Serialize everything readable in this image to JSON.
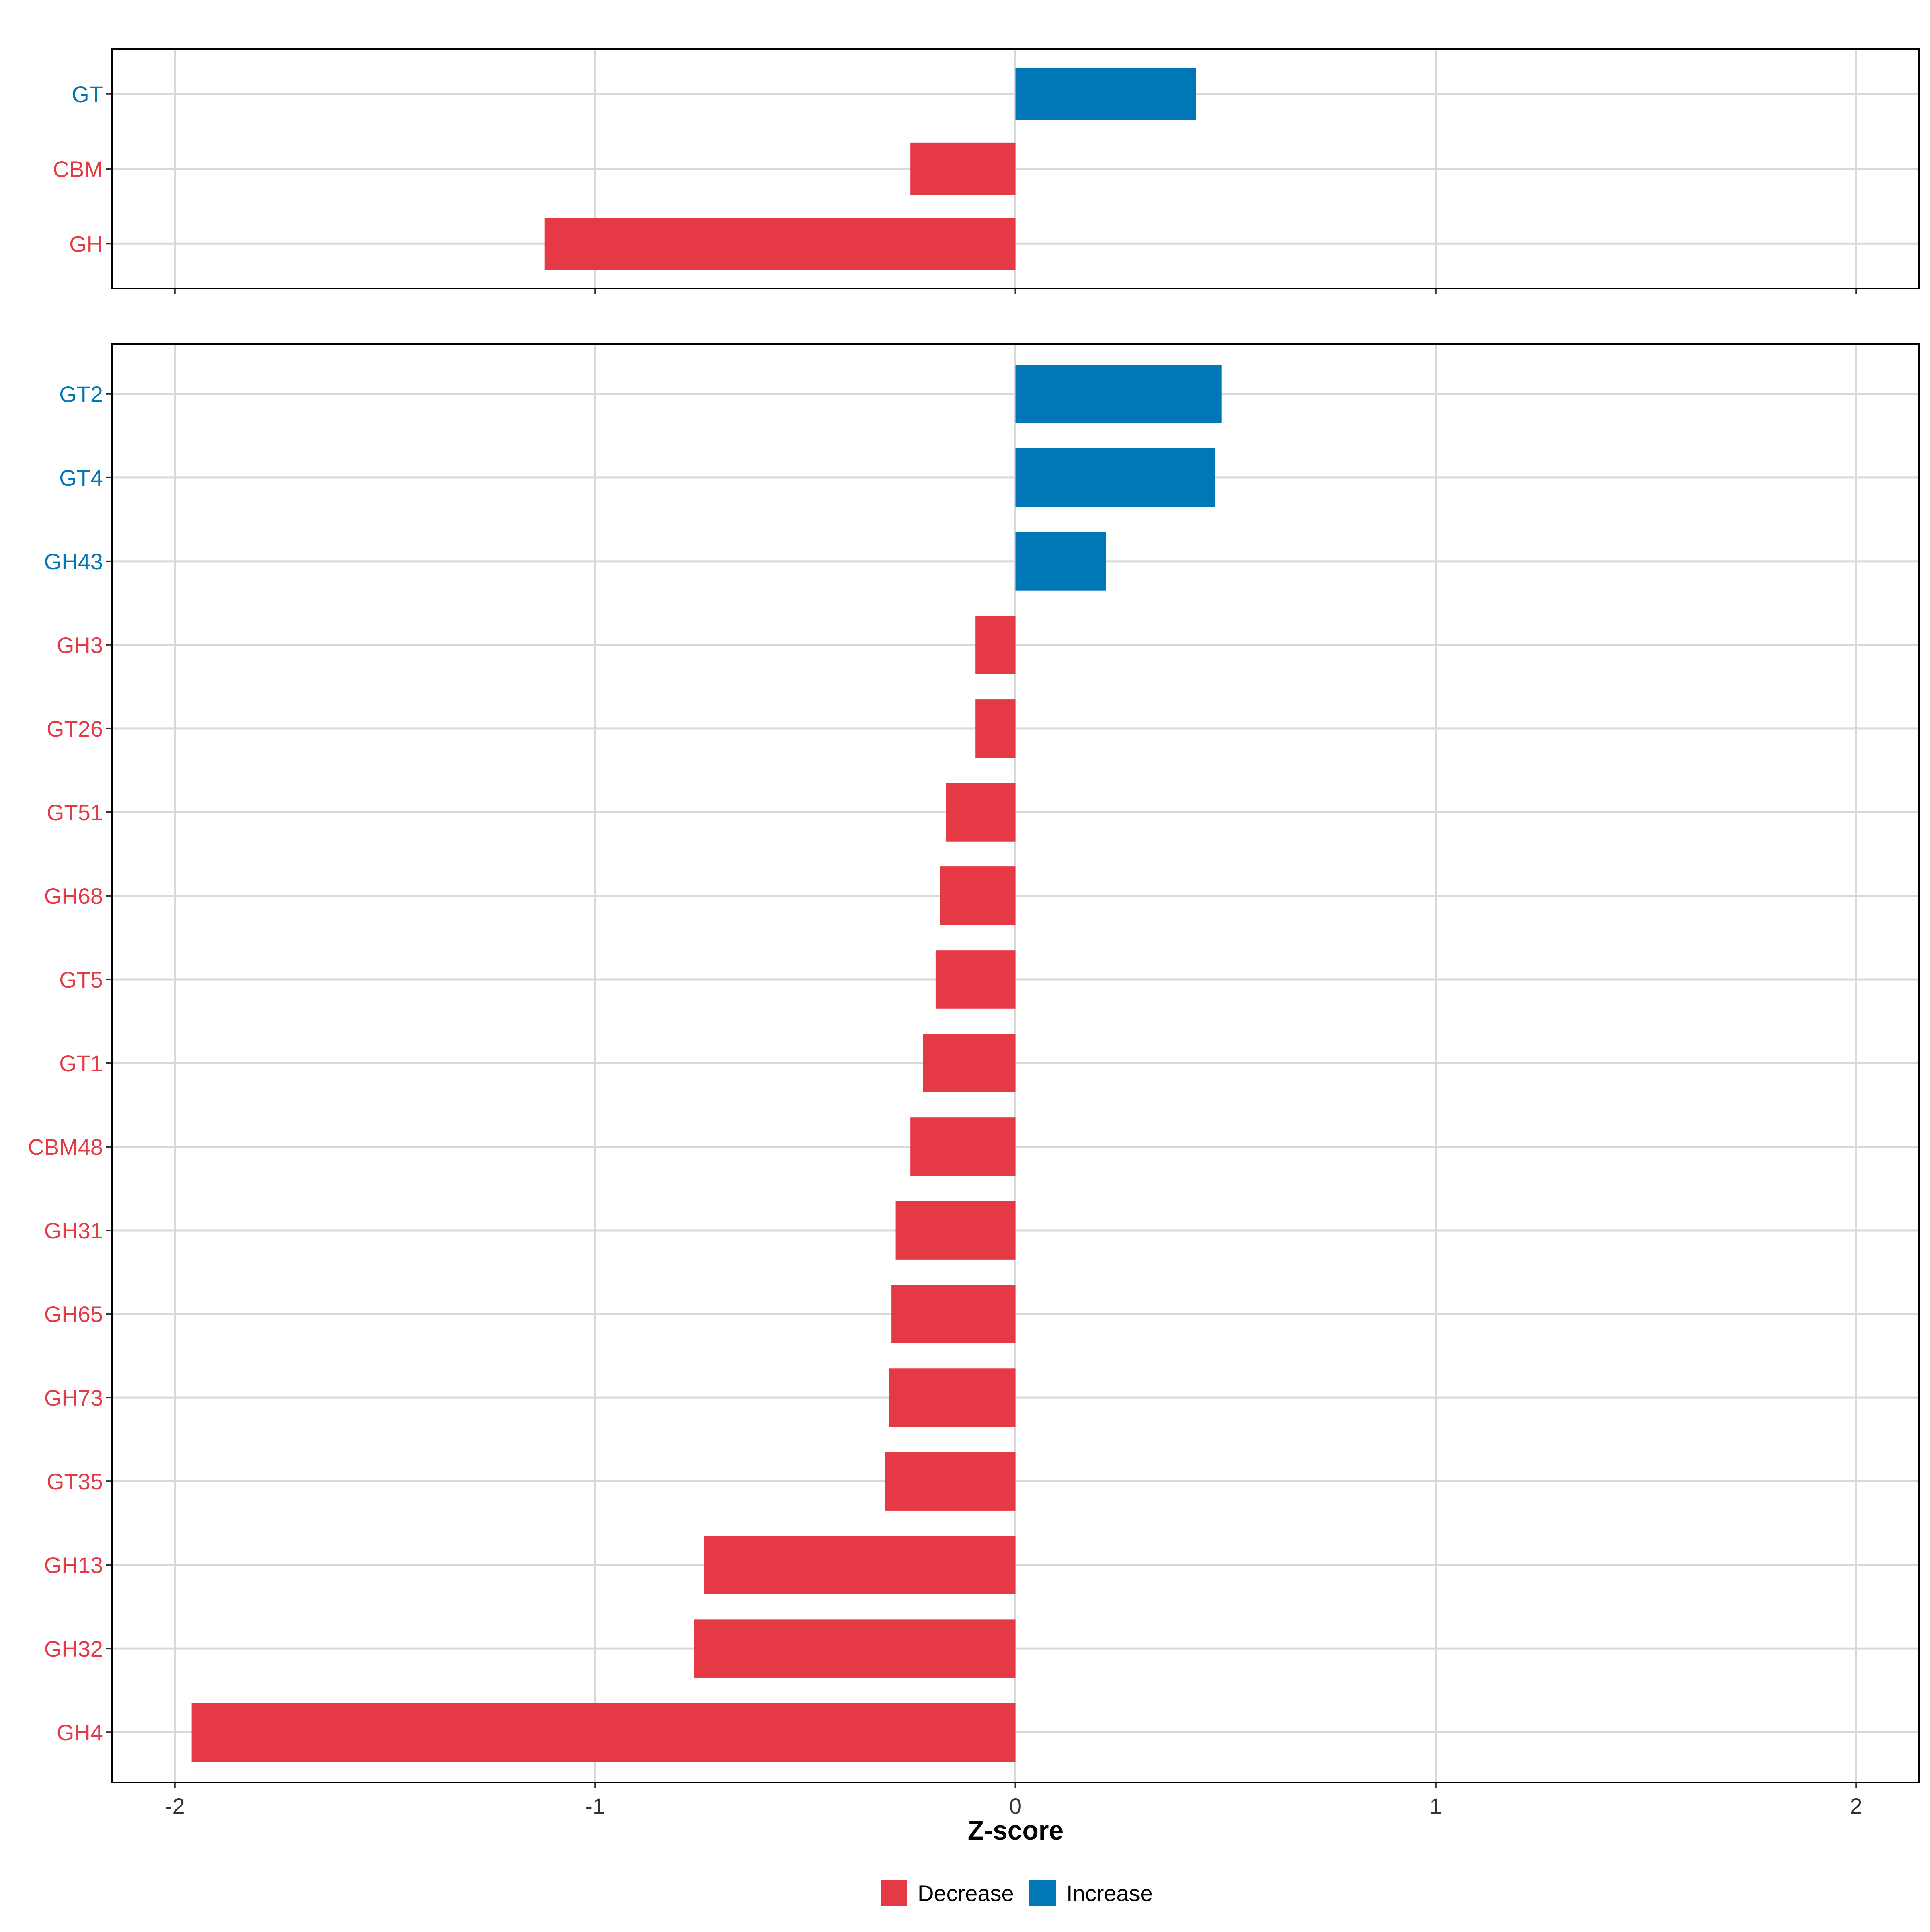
{
  "chart_data": {
    "type": "bar",
    "orientation": "horizontal",
    "xlabel": "Z-score",
    "xlim": [
      -2.15,
      2.15
    ],
    "xticks": [
      -2,
      -1,
      0,
      1,
      2
    ],
    "xtick_labels": [
      "-2",
      "-1",
      "0",
      "1",
      "2"
    ],
    "grid": true,
    "legend_position": "bottom",
    "legend": [
      {
        "label": "Decrease",
        "color": "#E63946"
      },
      {
        "label": "Increase",
        "color": "#0077B6"
      }
    ],
    "panels": [
      {
        "name": "top",
        "categories": [
          "GT",
          "CBM",
          "GH"
        ],
        "values": [
          0.43,
          -0.25,
          -1.12
        ]
      },
      {
        "name": "bottom",
        "categories": [
          "GT2",
          "GT4",
          "GH43",
          "GH3",
          "GT26",
          "GT51",
          "GH68",
          "GT5",
          "GT1",
          "CBM48",
          "GH31",
          "GH65",
          "GH73",
          "GT35",
          "GH13",
          "GH32",
          "GH4"
        ],
        "values": [
          0.49,
          0.475,
          0.215,
          -0.095,
          -0.095,
          -0.165,
          -0.18,
          -0.19,
          -0.22,
          -0.25,
          -0.285,
          -0.295,
          -0.3,
          -0.31,
          -0.74,
          -0.765,
          -1.96
        ]
      }
    ]
  }
}
